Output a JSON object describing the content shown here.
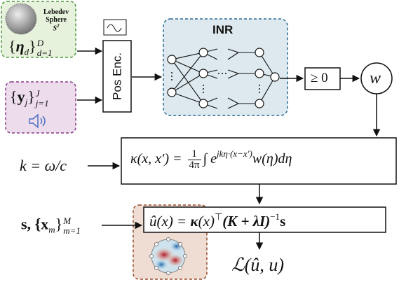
{
  "sphere": {
    "name": "Lebedev",
    "name2": "Sphere",
    "symbol": "S",
    "symbol_sup": "2"
  },
  "directions": [
    "{",
    "η",
    "d",
    "}",
    "D",
    "d=1"
  ],
  "measurements": [
    "{",
    "y",
    "j",
    "}",
    "J",
    "j=1"
  ],
  "pos_enc": "Pos Enc.",
  "inr": "INR",
  "nonneg": "≥ 0",
  "weight": "w",
  "wavenumber": "k = ω/c",
  "kernel": [
    "κ(x, x′) = ",
    "1",
    "4π",
    "∫ e",
    "jkη·(x−x′)",
    "w(η)dη"
  ],
  "points": [
    "s,  {",
    "x",
    "m",
    "}",
    "M",
    "m=1"
  ],
  "posterior": [
    "û(x) = ",
    "κ",
    "(x)",
    "⊤",
    "(K + λI)",
    "−1",
    "s"
  ],
  "loss": "ℒ(û, u)"
}
